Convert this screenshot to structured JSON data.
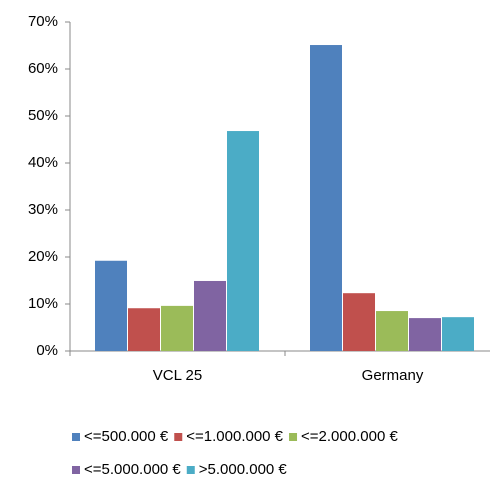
{
  "chart_data": {
    "type": "bar",
    "categories": [
      "VCL 25",
      "Germany"
    ],
    "series": [
      {
        "name": "<=500.000 €",
        "color": "#4f81bd",
        "values": [
          19.2,
          65.1
        ]
      },
      {
        "name": "<=1.000.000 €",
        "color": "#c0504d",
        "values": [
          9.1,
          12.3
        ]
      },
      {
        "name": "<=2.000.000 €",
        "color": "#9bbb59",
        "values": [
          9.6,
          8.5
        ]
      },
      {
        "name": "<=5.000.000 €",
        "color": "#8064a2",
        "values": [
          14.9,
          7.0
        ]
      },
      {
        "name": ">5.000.000 €",
        "color": "#4bacc6",
        "values": [
          46.8,
          7.2
        ]
      }
    ],
    "ylim": [
      0,
      70
    ],
    "yticks": [
      {
        "value": 0,
        "label": "0%"
      },
      {
        "value": 10,
        "label": "10%"
      },
      {
        "value": 20,
        "label": "20%"
      },
      {
        "value": 30,
        "label": "30%"
      },
      {
        "value": 40,
        "label": "40%"
      },
      {
        "value": 50,
        "label": "50%"
      },
      {
        "value": 60,
        "label": "60%"
      },
      {
        "value": 70,
        "label": "70%"
      }
    ],
    "grid": false,
    "legend": "bottom"
  }
}
